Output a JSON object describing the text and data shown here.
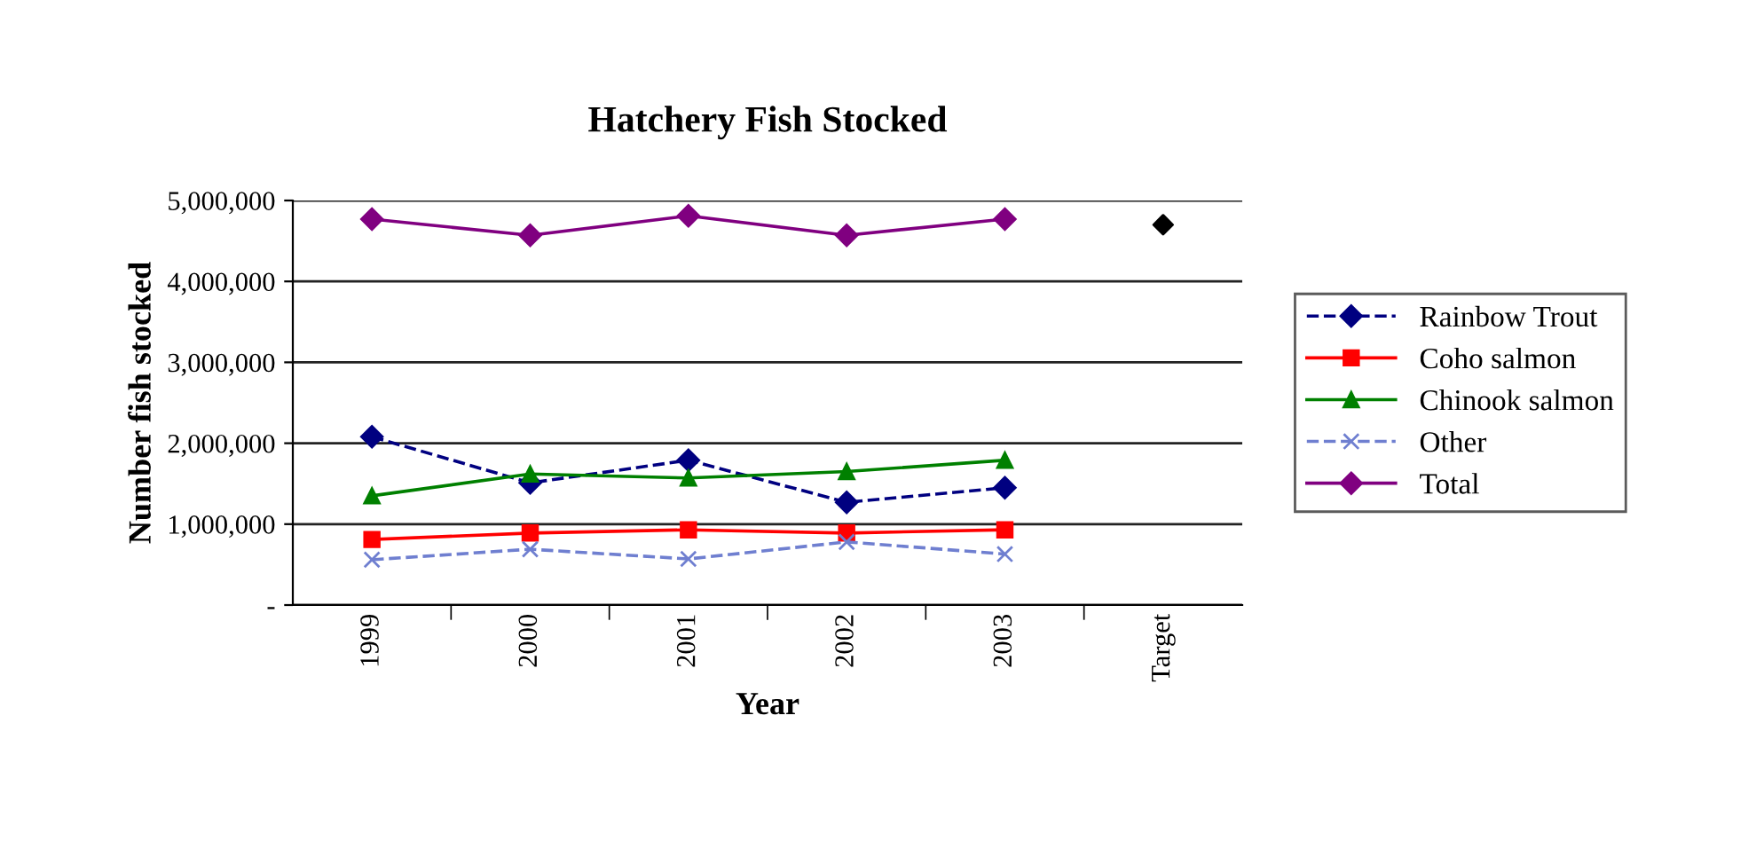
{
  "chart_data": {
    "type": "line",
    "title": "Hatchery Fish Stocked",
    "xlabel": "Year",
    "ylabel": "Number fish stocked",
    "categories": [
      "1999",
      "2000",
      "2001",
      "2002",
      "2003",
      "Target"
    ],
    "ylim": [
      0,
      5000000
    ],
    "yticks": [
      {
        "value": 0,
        "label": "-"
      },
      {
        "value": 1000000,
        "label": "1,000,000"
      },
      {
        "value": 2000000,
        "label": "2,000,000"
      },
      {
        "value": 3000000,
        "label": "3,000,000"
      },
      {
        "value": 4000000,
        "label": "4,000,000"
      },
      {
        "value": 5000000,
        "label": "5,000,000"
      }
    ],
    "grid": "y",
    "legend": "right",
    "series": [
      {
        "name": "Rainbow Trout",
        "color": "#000080",
        "marker": "diamond",
        "line_style": "dashed",
        "values": [
          2080000,
          1510000,
          1790000,
          1270000,
          1450000,
          null
        ]
      },
      {
        "name": "Coho salmon",
        "color": "#ff0000",
        "marker": "square",
        "line_style": "solid",
        "values": [
          810000,
          890000,
          930000,
          890000,
          930000,
          null
        ]
      },
      {
        "name": "Chinook salmon",
        "color": "#008000",
        "marker": "triangle",
        "line_style": "solid",
        "values": [
          1350000,
          1620000,
          1570000,
          1650000,
          1790000,
          null
        ]
      },
      {
        "name": "Other",
        "color": "#6f7fd0",
        "marker": "cross",
        "line_style": "dashed",
        "values": [
          560000,
          690000,
          570000,
          780000,
          630000,
          null
        ]
      },
      {
        "name": "Total",
        "color": "#800080",
        "marker": "diamond",
        "line_style": "solid",
        "values": [
          4770000,
          4570000,
          4810000,
          4570000,
          4770000,
          null
        ]
      },
      {
        "type": "scatter",
        "color": "#000000",
        "marker": "diamond",
        "values": [
          null,
          null,
          null,
          null,
          null,
          4700000
        ]
      }
    ]
  }
}
